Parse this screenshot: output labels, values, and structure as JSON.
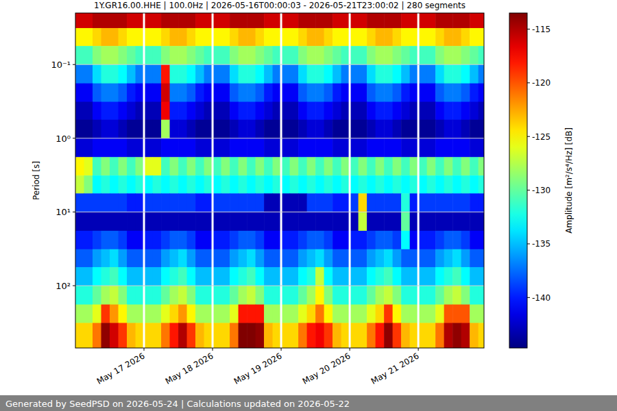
{
  "chart_data": {
    "type": "heatmap",
    "title": "1Y.GR16.00.HHE | 100.0Hz | 2026-05-16T00:00:03 - 2026-05-21T23:00:02 | 280 segments",
    "y_label": "Period [s]",
    "colorbar_label": "Amplitude [m²/s⁴/Hz] [dB]",
    "footer": "Generated by SeedPSD on 2026-05-24 | Calculations updated on 2026-05-22",
    "log": "y",
    "grid": true,
    "color": "jet",
    "xlim": [
      "2026-05-16T00:00",
      "2026-05-21T23:00"
    ],
    "xticks": [
      {
        "value": "2026-05-17T00:00",
        "label": "May 17 2026"
      },
      {
        "value": "2026-05-18T00:00",
        "label": "May 18 2026"
      },
      {
        "value": "2026-05-19T00:00",
        "label": "May 19 2026"
      },
      {
        "value": "2026-05-20T00:00",
        "label": "May 20 2026"
      },
      {
        "value": "2026-05-21T00:00",
        "label": "May 21 2026"
      }
    ],
    "ylim": [
      0.02,
      700
    ],
    "yticks": [
      {
        "value": 0.1,
        "label": "10⁻¹"
      },
      {
        "value": 1,
        "label": "10⁰"
      },
      {
        "value": 10,
        "label": "10¹"
      },
      {
        "value": 100,
        "label": "10²"
      }
    ],
    "clim": [
      -144.7,
      -113.5
    ],
    "cticks": [
      -140,
      -135,
      -130,
      -125,
      -120,
      -115
    ],
    "x_bins": [
      "2026-05-16T00:00",
      "2026-05-16T03:00",
      "2026-05-16T06:00",
      "2026-05-16T09:00",
      "2026-05-16T12:00",
      "2026-05-16T15:00",
      "2026-05-16T18:00",
      "2026-05-16T21:00",
      "2026-05-17T00:00",
      "2026-05-17T03:00",
      "2026-05-17T06:00",
      "2026-05-17T09:00",
      "2026-05-17T12:00",
      "2026-05-17T15:00",
      "2026-05-17T18:00",
      "2026-05-17T21:00",
      "2026-05-18T00:00",
      "2026-05-18T03:00",
      "2026-05-18T06:00",
      "2026-05-18T09:00",
      "2026-05-18T12:00",
      "2026-05-18T15:00",
      "2026-05-18T18:00",
      "2026-05-18T21:00",
      "2026-05-19T00:00",
      "2026-05-19T03:00",
      "2026-05-19T06:00",
      "2026-05-19T09:00",
      "2026-05-19T12:00",
      "2026-05-19T15:00",
      "2026-05-19T18:00",
      "2026-05-19T21:00",
      "2026-05-20T00:00",
      "2026-05-20T03:00",
      "2026-05-20T06:00",
      "2026-05-20T09:00",
      "2026-05-20T12:00",
      "2026-05-20T15:00",
      "2026-05-20T18:00",
      "2026-05-20T21:00",
      "2026-05-21T00:00",
      "2026-05-21T03:00",
      "2026-05-21T06:00",
      "2026-05-21T09:00",
      "2026-05-21T12:00",
      "2026-05-21T15:00",
      "2026-05-21T18:00",
      "2026-05-21T21:00",
      "2026-05-21T23:00"
    ],
    "y_bins": [
      0.02,
      0.032,
      0.056,
      0.1,
      0.18,
      0.32,
      0.56,
      1,
      1.8,
      3.2,
      5.6,
      10,
      18,
      32,
      56,
      100,
      180,
      320,
      700
    ],
    "cells": [
      [
        -116,
        -116,
        -115,
        -115,
        -115,
        -115,
        -116,
        -116,
        -116,
        -116,
        -115,
        -115,
        -115,
        -115,
        -116,
        -116,
        -116,
        -116,
        -115,
        -115,
        -115,
        -115,
        -116,
        -116,
        -116,
        -116,
        -115,
        -115,
        -115,
        -115,
        -116,
        -116,
        -116,
        -116,
        -115,
        -115,
        -115,
        -115,
        -116,
        -116,
        -116,
        -116,
        -115,
        -115,
        -115,
        -115,
        -116,
        -116
      ],
      [
        -125,
        -125,
        -124,
        -123,
        -123,
        -124,
        -125,
        -125,
        -125,
        -125,
        -124,
        -123,
        -123,
        -124,
        -125,
        -125,
        -125,
        -125,
        -124,
        -123,
        -123,
        -124,
        -125,
        -125,
        -125,
        -125,
        -124,
        -123,
        -123,
        -124,
        -125,
        -125,
        -125,
        -125,
        -124,
        -123,
        -123,
        -124,
        -125,
        -125,
        -125,
        -125,
        -124,
        -123,
        -123,
        -124,
        -125,
        -125
      ],
      [
        -131,
        -131,
        -129,
        -128,
        -128,
        -129,
        -130,
        -131,
        -131,
        -131,
        -129,
        -128,
        -128,
        -129,
        -130,
        -131,
        -131,
        -131,
        -129,
        -128,
        -128,
        -129,
        -130,
        -131,
        -131,
        -131,
        -129,
        -128,
        -128,
        -129,
        -130,
        -131,
        -131,
        -131,
        -129,
        -128,
        -128,
        -129,
        -130,
        -131,
        -131,
        -131,
        -129,
        -128,
        -128,
        -129,
        -130,
        -131
      ],
      [
        -137,
        -137,
        -134,
        -132,
        -132,
        -133,
        -135,
        -137,
        -137,
        -137,
        -118,
        -132,
        -132,
        -133,
        -135,
        -137,
        -137,
        -137,
        -134,
        -132,
        -132,
        -133,
        -135,
        -137,
        -137,
        -137,
        -134,
        -132,
        -132,
        -133,
        -135,
        -137,
        -137,
        -137,
        -134,
        -132,
        -132,
        -133,
        -135,
        -137,
        -137,
        -137,
        -134,
        -132,
        -132,
        -133,
        -135,
        -137
      ],
      [
        -141,
        -141,
        -138,
        -137,
        -137,
        -138,
        -140,
        -141,
        -141,
        -141,
        -116,
        -137,
        -137,
        -138,
        -140,
        -141,
        -141,
        -141,
        -138,
        -137,
        -137,
        -138,
        -140,
        -141,
        -141,
        -141,
        -138,
        -137,
        -137,
        -138,
        -140,
        -141,
        -141,
        -141,
        -138,
        -137,
        -137,
        -138,
        -140,
        -141,
        -141,
        -141,
        -138,
        -137,
        -137,
        -138,
        -140,
        -141
      ],
      [
        -143,
        -143,
        -141,
        -140,
        -140,
        -141,
        -142,
        -143,
        -143,
        -143,
        -117,
        -140,
        -140,
        -141,
        -142,
        -143,
        -143,
        -143,
        -141,
        -140,
        -140,
        -141,
        -142,
        -143,
        -143,
        -143,
        -141,
        -140,
        -140,
        -141,
        -142,
        -143,
        -143,
        -143,
        -141,
        -140,
        -140,
        -141,
        -142,
        -143,
        -143,
        -143,
        -141,
        -140,
        -140,
        -141,
        -142,
        -143
      ],
      [
        -144,
        -144,
        -143,
        -142,
        -142,
        -143,
        -144,
        -144,
        -144,
        -144,
        -128,
        -142,
        -142,
        -143,
        -144,
        -144,
        -144,
        -144,
        -143,
        -142,
        -142,
        -143,
        -144,
        -144,
        -144,
        -144,
        -143,
        -142,
        -142,
        -143,
        -144,
        -144,
        -144,
        -144,
        -143,
        -142,
        -142,
        -143,
        -144,
        -144,
        -144,
        -144,
        -143,
        -142,
        -142,
        -143,
        -144,
        -144
      ],
      [
        -142,
        -142,
        -141,
        -141,
        -141,
        -141,
        -142,
        -142,
        -142,
        -142,
        -141,
        -141,
        -141,
        -141,
        -142,
        -142,
        -142,
        -142,
        -141,
        -141,
        -141,
        -141,
        -142,
        -142,
        -142,
        -142,
        -141,
        -141,
        -141,
        -141,
        -142,
        -142,
        -142,
        -142,
        -141,
        -141,
        -141,
        -141,
        -142,
        -142,
        -142,
        -142,
        -141,
        -141,
        -141,
        -141,
        -142,
        -142
      ],
      [
        -125,
        -126,
        -131,
        -129,
        -131,
        -129,
        -131,
        -129,
        -126,
        -126,
        -131,
        -129,
        -131,
        -129,
        -131,
        -129,
        -131,
        -129,
        -131,
        -129,
        -131,
        -129,
        -131,
        -129,
        -131,
        -129,
        -131,
        -129,
        -131,
        -129,
        -131,
        -129,
        -131,
        -129,
        -131,
        -129,
        -131,
        -129,
        -131,
        -129,
        -131,
        -129,
        -131,
        -129,
        -131,
        -129,
        -131,
        -129
      ],
      [
        -127,
        -129,
        -133,
        -132,
        -133,
        -132,
        -133,
        -132,
        -133,
        -132,
        -133,
        -132,
        -133,
        -132,
        -133,
        -132,
        -133,
        -132,
        -133,
        -132,
        -133,
        -132,
        -133,
        -132,
        -133,
        -132,
        -133,
        -132,
        -133,
        -132,
        -133,
        -132,
        -133,
        -132,
        -133,
        -132,
        -133,
        -132,
        -133,
        -132,
        -133,
        -132,
        -133,
        -132,
        -133,
        -132,
        -133,
        -132
      ],
      [
        -139,
        -139,
        -139,
        -139,
        -139,
        -139,
        -140,
        -140,
        -139,
        -139,
        -139,
        -139,
        -139,
        -139,
        -140,
        -140,
        -139,
        -139,
        -139,
        -139,
        -139,
        -139,
        -143,
        -143,
        -143,
        -143,
        -143,
        -139,
        -139,
        -139,
        -140,
        -140,
        -139,
        -124,
        -139,
        -139,
        -139,
        -139,
        -132,
        -140,
        -139,
        -139,
        -139,
        -139,
        -139,
        -139,
        -140,
        -140
      ],
      [
        -143,
        -143,
        -143,
        -143,
        -143,
        -143,
        -143,
        -143,
        -143,
        -143,
        -143,
        -143,
        -143,
        -143,
        -143,
        -143,
        -143,
        -143,
        -143,
        -143,
        -143,
        -143,
        -143,
        -143,
        -143,
        -143,
        -143,
        -143,
        -143,
        -143,
        -143,
        -143,
        -143,
        -127,
        -143,
        -143,
        -143,
        -143,
        -130,
        -143,
        -143,
        -143,
        -143,
        -143,
        -143,
        -143,
        -143,
        -143
      ],
      [
        -140,
        -140,
        -139,
        -138,
        -138,
        -139,
        -141,
        -141,
        -140,
        -140,
        -139,
        -138,
        -138,
        -139,
        -141,
        -141,
        -140,
        -140,
        -139,
        -138,
        -138,
        -139,
        -141,
        -141,
        -140,
        -140,
        -139,
        -138,
        -138,
        -139,
        -141,
        -141,
        -140,
        -140,
        -139,
        -138,
        -138,
        -139,
        -133,
        -141,
        -140,
        -140,
        -139,
        -138,
        -138,
        -139,
        -141,
        -141
      ],
      [
        -138,
        -138,
        -136,
        -135,
        -134,
        -136,
        -138,
        -138,
        -138,
        -138,
        -136,
        -135,
        -134,
        -136,
        -138,
        -138,
        -138,
        -138,
        -136,
        -135,
        -134,
        -136,
        -138,
        -138,
        -138,
        -138,
        -136,
        -135,
        -134,
        -136,
        -138,
        -138,
        -138,
        -138,
        -136,
        -135,
        -134,
        -136,
        -138,
        -138,
        -138,
        -138,
        -136,
        -135,
        -134,
        -136,
        -138,
        -138
      ],
      [
        -135,
        -135,
        -133,
        -132,
        -131,
        -133,
        -135,
        -135,
        -135,
        -135,
        -133,
        -132,
        -131,
        -133,
        -135,
        -135,
        -135,
        -135,
        -133,
        -132,
        -131,
        -133,
        -135,
        -135,
        -135,
        -135,
        -133,
        -132,
        -127,
        -133,
        -135,
        -135,
        -135,
        -135,
        -133,
        -132,
        -131,
        -133,
        -135,
        -135,
        -135,
        -135,
        -133,
        -132,
        -131,
        -133,
        -135,
        -135
      ],
      [
        -132,
        -132,
        -130,
        -128,
        -127,
        -129,
        -132,
        -132,
        -132,
        -132,
        -130,
        -128,
        -127,
        -129,
        -132,
        -132,
        -132,
        -132,
        -130,
        -128,
        -127,
        -129,
        -132,
        -132,
        -132,
        -132,
        -130,
        -128,
        -125,
        -129,
        -132,
        -132,
        -132,
        -132,
        -130,
        -128,
        -127,
        -129,
        -132,
        -132,
        -132,
        -132,
        -130,
        -128,
        -127,
        -129,
        -132,
        -132
      ],
      [
        -128,
        -128,
        -126,
        -119,
        -122,
        -125,
        -128,
        -128,
        -128,
        -128,
        -126,
        -124,
        -122,
        -125,
        -128,
        -128,
        -128,
        -128,
        -126,
        -118,
        -118,
        -118,
        -128,
        -128,
        -128,
        -128,
        -126,
        -124,
        -121,
        -125,
        -128,
        -128,
        -128,
        -128,
        -126,
        -124,
        -119,
        -125,
        -128,
        -128,
        -128,
        -128,
        -126,
        -120,
        -120,
        -120,
        -128,
        -128
      ],
      [
        -124,
        -124,
        -121,
        -114,
        -116,
        -119,
        -123,
        -124,
        -124,
        -124,
        -121,
        -118,
        -115,
        -119,
        -123,
        -124,
        -124,
        -124,
        -121,
        -113.5,
        -113.5,
        -114,
        -123,
        -124,
        -124,
        -124,
        -121,
        -118,
        -117,
        -119,
        -123,
        -124,
        -124,
        -124,
        -121,
        -118,
        -114,
        -119,
        -123,
        -124,
        -124,
        -124,
        -121,
        -115,
        -114,
        -115,
        -123,
        -124
      ]
    ]
  }
}
